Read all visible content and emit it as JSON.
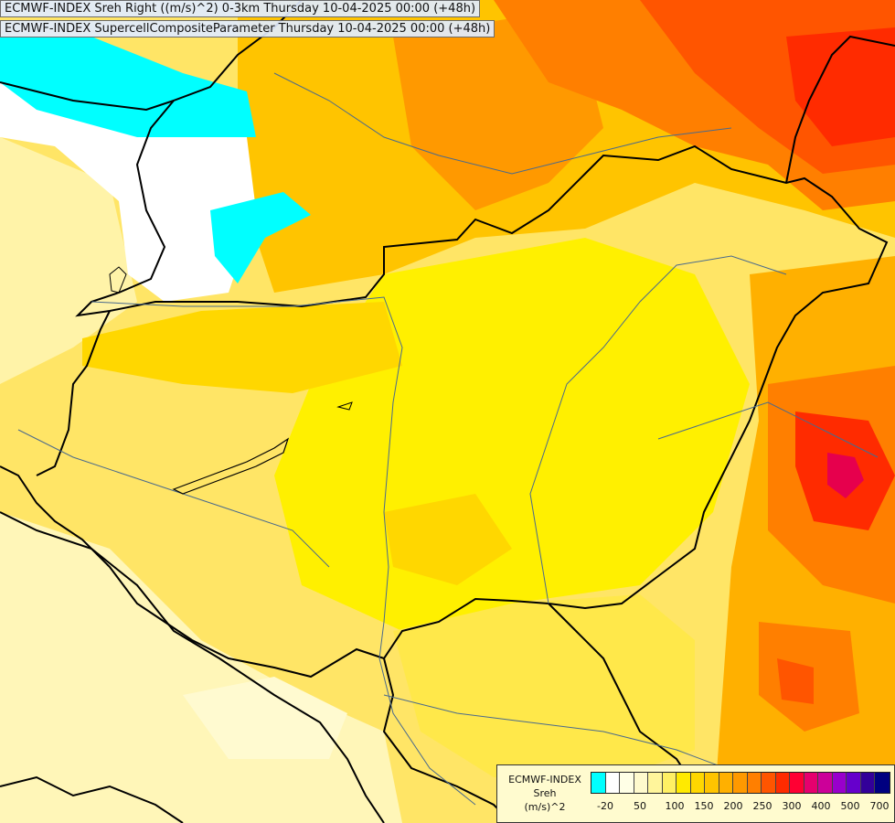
{
  "header": {
    "line1": "ECMWF-INDEX Sreh Right ((m/s)^2) 0-3km Thursday 10-04-2025 00:00 (+48h)",
    "line2": "ECMWF-INDEX SupercellCompositeParameter Thursday 10-04-2025 00:00 (+48h)"
  },
  "legend": {
    "title_lines": [
      "ECMWF-INDEX",
      "Sreh",
      "(m/s)^2"
    ],
    "colors": [
      "#00ffff",
      "#ffffff",
      "#ffffe6",
      "#fffacd",
      "#fff59b",
      "#fff064",
      "#ffea00",
      "#ffd700",
      "#ffc400",
      "#ffb000",
      "#ff9900",
      "#ff7f00",
      "#ff5500",
      "#ff2b00",
      "#ff0033",
      "#e6006e",
      "#cc0099",
      "#9900cc",
      "#6600cc",
      "#330099",
      "#000080"
    ],
    "ticks": [
      "-20",
      "50",
      "100",
      "150",
      "200",
      "250",
      "300",
      "400",
      "500",
      "700"
    ]
  },
  "colors": {
    "background": "#ffe97a",
    "border_line": "#000000",
    "river_line": "#4a6a8c"
  }
}
